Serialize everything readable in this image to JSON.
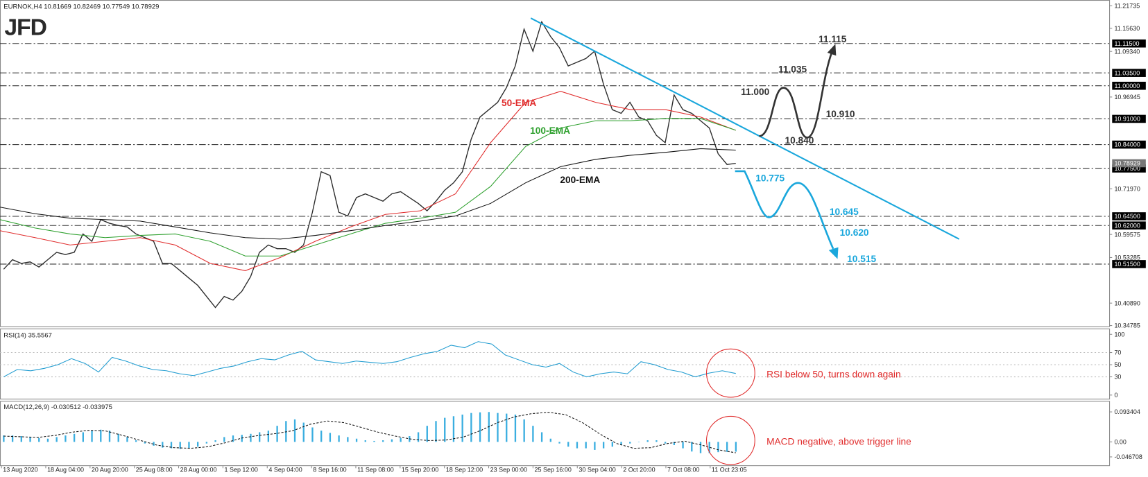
{
  "header": "EURNOK,H4  10.81669 10.82469 10.77549 10.78929",
  "logo": "JFD",
  "chart_data": [
    {
      "type": "line",
      "x_labels": [
        "13 Aug 2020",
        "18 Aug 04:00",
        "20 Aug 20:00",
        "25 Aug 08:00",
        "28 Aug 00:00",
        "1 Sep 12:00",
        "4 Sep 04:00",
        "8 Sep 16:00",
        "11 Sep 08:00",
        "15 Sep 20:00",
        "18 Sep 12:00",
        "23 Sep 00:00",
        "25 Sep 16:00",
        "30 Sep 04:00",
        "2 Oct 20:00",
        "7 Oct 08:00",
        "11 Oct 23:05"
      ],
      "ylim": [
        10.34785,
        11.21735
      ],
      "yticks": [
        11.21735,
        {
          "value": 11.1563,
          "label": "11.15630"
        },
        {
          "value": 11.0934,
          "label": "11.09340"
        },
        10.96945,
        {
          "value": 10.7197,
          "label": "10.71970"
        },
        10.59575,
        10.53285,
        {
          "value": 10.4089,
          "label": "10.40890"
        },
        10.34785
      ],
      "levels": [
        {
          "value": 11.115,
          "label": "11.11500"
        },
        {
          "value": 11.035,
          "label": "11.03500"
        },
        {
          "value": 11.0,
          "label": "11.00000"
        },
        {
          "value": 10.91,
          "label": "10.91000"
        },
        {
          "value": 10.84,
          "label": "10.84000"
        },
        {
          "value": 10.775,
          "label": "10.77500"
        },
        {
          "value": 10.645,
          "label": "10.64500"
        },
        {
          "value": 10.62,
          "label": "10.62000"
        },
        {
          "value": 10.515,
          "label": "10.51500"
        }
      ],
      "current": {
        "value": 10.78929,
        "label": "10.78929"
      },
      "series": [
        {
          "color": "#2b2b2b",
          "values": [
            10.501,
            10.527,
            10.517,
            10.521,
            10.507,
            10.527,
            10.547,
            10.541,
            10.547,
            10.597,
            10.577,
            10.636,
            10.626,
            10.62,
            10.616,
            10.597,
            10.587,
            10.577,
            10.517,
            10.517,
            10.497,
            10.477,
            10.457,
            10.427,
            10.397,
            10.427,
            10.417,
            10.441,
            10.481,
            10.547,
            10.567,
            10.557,
            10.557,
            10.547,
            10.567,
            10.656,
            10.766,
            10.756,
            10.656,
            10.646,
            10.696,
            10.706,
            10.696,
            10.686,
            10.706,
            10.712,
            10.696,
            10.68,
            10.66,
            10.686,
            10.716,
            10.736,
            10.766,
            10.855,
            10.915,
            10.935,
            10.955,
            10.995,
            11.054,
            11.154,
            11.094,
            11.174,
            11.134,
            11.104,
            11.054,
            11.064,
            11.074,
            11.094,
            11.004,
            10.935,
            10.925,
            10.955,
            10.915,
            10.905,
            10.865,
            10.845,
            10.975,
            10.935,
            10.925,
            10.905,
            10.885,
            10.815,
            10.786,
            10.789
          ]
        },
        {
          "name": "50-EMA",
          "color": "#e02b2b",
          "values": [
            10.606,
            10.587,
            10.567,
            10.577,
            10.587,
            10.567,
            10.517,
            10.497,
            10.533,
            10.577,
            10.616,
            10.65,
            10.66,
            10.706,
            10.845,
            10.955,
            10.985,
            10.955,
            10.935,
            10.935,
            10.915,
            10.879
          ]
        },
        {
          "name": "100-EMA",
          "color": "#2ea02e",
          "values": [
            10.636,
            10.613,
            10.597,
            10.587,
            10.593,
            10.597,
            10.577,
            10.537,
            10.537,
            10.567,
            10.597,
            10.626,
            10.64,
            10.656,
            10.726,
            10.835,
            10.885,
            10.905,
            10.905,
            10.911,
            10.911,
            10.879
          ]
        },
        {
          "name": "200-EMA",
          "color": "#111111",
          "values": [
            10.67,
            10.652,
            10.64,
            10.636,
            10.632,
            10.616,
            10.6,
            10.587,
            10.583,
            10.593,
            10.606,
            10.62,
            10.632,
            10.646,
            10.68,
            10.736,
            10.78,
            10.8,
            10.811,
            10.819,
            10.829,
            10.825
          ]
        }
      ],
      "trendline": {
        "color": "#1aa7dc",
        "values": [
          11.184,
          10.583
        ]
      },
      "scenario_up": {
        "color": "#333333",
        "labels": [
          "11.115",
          "11.035",
          "11.000",
          "10.910",
          "10.840"
        ]
      },
      "scenario_down": {
        "color": "#1aa7dc",
        "labels": [
          "10.775",
          "10.645",
          "10.620",
          "10.515"
        ]
      }
    },
    {
      "type": "line",
      "title": "RSI(14) 35.5567",
      "ylim": [
        0,
        100
      ],
      "yticks": [
        0,
        30,
        50,
        70,
        100
      ],
      "series": [
        {
          "color": "#1e9bd0",
          "values": [
            30,
            42,
            40,
            44,
            50,
            60,
            52,
            38,
            62,
            56,
            48,
            42,
            40,
            35,
            32,
            38,
            44,
            48,
            55,
            60,
            58,
            66,
            72,
            58,
            55,
            52,
            56,
            54,
            52,
            55,
            62,
            68,
            72,
            82,
            78,
            88,
            84,
            66,
            58,
            50,
            46,
            52,
            38,
            30,
            35,
            38,
            35,
            55,
            50,
            42,
            38,
            30,
            36,
            40,
            35.5567
          ]
        }
      ],
      "annotation": {
        "color": "#e02b2b",
        "text": "RSI below 50, turns down again"
      }
    },
    {
      "type": "bar",
      "title": "MACD(12,26,9) -0.030512 -0.033975",
      "ylim": [
        -0.046708,
        0.093404
      ],
      "yticks": [
        0.093404,
        {
          "value": 0,
          "label": "0.00"
        },
        -0.046708
      ],
      "series": [
        {
          "color": "#3aaee0",
          "values": [
            0.02,
            0.02,
            0.018,
            0.015,
            0.012,
            0.01,
            0.015,
            0.02,
            0.025,
            0.03,
            0.035,
            0.038,
            0.035,
            0.025,
            0.015,
            0.005,
            -0.005,
            -0.012,
            -0.018,
            -0.02,
            -0.022,
            -0.02,
            -0.015,
            -0.005,
            0.005,
            0.015,
            0.02,
            0.022,
            0.025,
            0.03,
            0.035,
            0.05,
            0.065,
            0.07,
            0.06,
            0.045,
            0.035,
            0.028,
            0.02,
            0.015,
            0.01,
            0.005,
            0.003,
            0.005,
            0.008,
            0.012,
            0.018,
            0.03,
            0.05,
            0.065,
            0.075,
            0.08,
            0.085,
            0.09,
            0.092,
            0.093,
            0.09,
            0.088,
            0.085,
            0.07,
            0.05,
            0.03,
            0.01,
            -0.005,
            -0.015,
            -0.02,
            -0.02,
            -0.025,
            -0.02,
            -0.015,
            -0.01,
            -0.005,
            0,
            0.005,
            0.005,
            -0.005,
            -0.01,
            -0.02,
            -0.03,
            -0.035,
            -0.035,
            -0.032,
            -0.031,
            -0.030512
          ]
        },
        {
          "color": "#111111",
          "dashed": true,
          "values": [
            0.018,
            0.016,
            0.014,
            0.02,
            0.03,
            0.036,
            0.034,
            0.02,
            0.005,
            -0.01,
            -0.018,
            -0.02,
            -0.015,
            -0.003,
            0.012,
            0.02,
            0.026,
            0.035,
            0.055,
            0.065,
            0.06,
            0.045,
            0.03,
            0.018,
            0.008,
            0.004,
            0.006,
            0.015,
            0.035,
            0.06,
            0.078,
            0.088,
            0.092,
            0.085,
            0.06,
            0.025,
            -0.005,
            -0.02,
            -0.018,
            -0.005,
            0.002,
            -0.01,
            -0.025,
            -0.033975
          ]
        }
      ],
      "annotation": {
        "color": "#e02b2b",
        "text": "MACD negative, above trigger line"
      }
    }
  ]
}
